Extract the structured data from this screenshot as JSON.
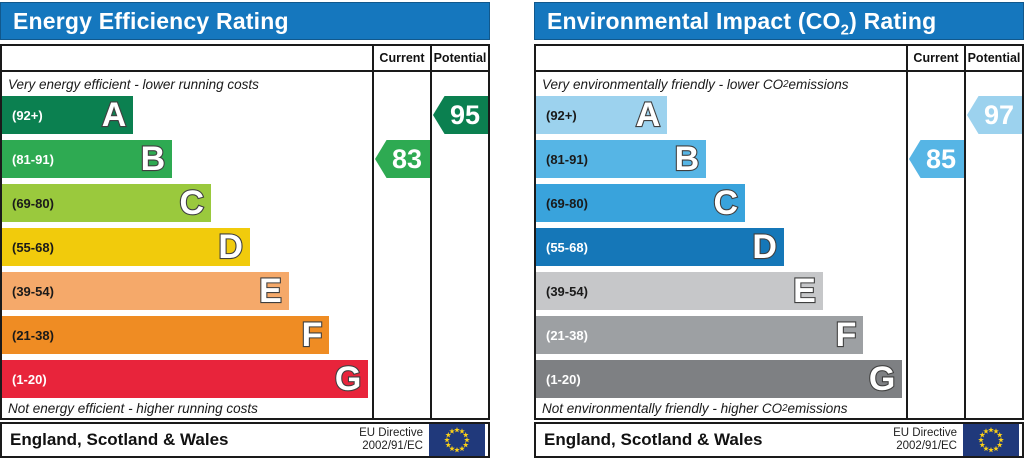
{
  "panels": [
    {
      "id": "energy-efficiency",
      "title": {
        "pre": "Energy Efficiency Rating",
        "sub": "",
        "post": ""
      },
      "columns": {
        "current": "Current",
        "potential": "Potential"
      },
      "top_note": {
        "pre": "Very energy efficient - lower running costs",
        "sub": "",
        "post": ""
      },
      "bottom_note": {
        "pre": "Not energy efficient - higher running costs",
        "sub": "",
        "post": ""
      },
      "bands": [
        {
          "letter": "A",
          "range": "(92+)",
          "color": "#0b8050",
          "label_color": "#ffffff",
          "width_pct": 35.5
        },
        {
          "letter": "B",
          "range": "(81-91)",
          "color": "#2eaa52",
          "label_color": "#ffffff",
          "width_pct": 46
        },
        {
          "letter": "C",
          "range": "(69-80)",
          "color": "#9ac93d",
          "label_color": "#1a1a1a",
          "width_pct": 56.5
        },
        {
          "letter": "D",
          "range": "(55-68)",
          "color": "#f1cb0c",
          "label_color": "#1a1a1a",
          "width_pct": 67
        },
        {
          "letter": "E",
          "range": "(39-54)",
          "color": "#f5a96a",
          "label_color": "#1a1a1a",
          "width_pct": 77.5
        },
        {
          "letter": "F",
          "range": "(21-38)",
          "color": "#ef8c23",
          "label_color": "#1a1a1a",
          "width_pct": 88.5
        },
        {
          "letter": "G",
          "range": "(1-20)",
          "color": "#e8243b",
          "label_color": "#ffffff",
          "width_pct": 99
        }
      ],
      "current": {
        "value": "83",
        "band_index": 1,
        "color": "#2eaa52"
      },
      "potential": {
        "value": "95",
        "band_index": 0,
        "color": "#0b8050"
      },
      "footer": {
        "region": "England, Scotland & Wales",
        "directive_line1": "EU Directive",
        "directive_line2": "2002/91/EC"
      }
    },
    {
      "id": "environmental-impact",
      "title": {
        "pre": "Environmental Impact (CO",
        "sub": "2",
        "post": ") Rating"
      },
      "columns": {
        "current": "Current",
        "potential": "Potential"
      },
      "top_note": {
        "pre": "Very environmentally friendly - lower CO",
        "sub": "2",
        "post": " emissions"
      },
      "bottom_note": {
        "pre": "Not environmentally friendly - higher CO",
        "sub": "2",
        "post": " emissions"
      },
      "bands": [
        {
          "letter": "A",
          "range": "(92+)",
          "color": "#9cd2ee",
          "label_color": "#1a1a1a",
          "width_pct": 35.5
        },
        {
          "letter": "B",
          "range": "(81-91)",
          "color": "#56b5e5",
          "label_color": "#1a1a1a",
          "width_pct": 46
        },
        {
          "letter": "C",
          "range": "(69-80)",
          "color": "#39a3dc",
          "label_color": "#1a1a1a",
          "width_pct": 56.5
        },
        {
          "letter": "D",
          "range": "(55-68)",
          "color": "#1577b8",
          "label_color": "#ffffff",
          "width_pct": 67
        },
        {
          "letter": "E",
          "range": "(39-54)",
          "color": "#c6c7c9",
          "label_color": "#1a1a1a",
          "width_pct": 77.5
        },
        {
          "letter": "F",
          "range": "(21-38)",
          "color": "#9da0a3",
          "label_color": "#ffffff",
          "width_pct": 88.5
        },
        {
          "letter": "G",
          "range": "(1-20)",
          "color": "#7e8083",
          "label_color": "#ffffff",
          "width_pct": 99
        }
      ],
      "current": {
        "value": "85",
        "band_index": 1,
        "color": "#56b5e5"
      },
      "potential": {
        "value": "97",
        "band_index": 0,
        "color": "#9cd2ee"
      },
      "footer": {
        "region": "England, Scotland & Wales",
        "directive_line1": "EU Directive",
        "directive_line2": "2002/91/EC"
      }
    }
  ],
  "eu_flag": {
    "background": "#20397b",
    "star_color": "#fcd116"
  },
  "chart_data": [
    {
      "type": "bar",
      "title": "Energy Efficiency Rating",
      "categories": [
        "A",
        "B",
        "C",
        "D",
        "E",
        "F",
        "G"
      ],
      "ranges": [
        "92+",
        "81-91",
        "69-80",
        "55-68",
        "39-54",
        "21-38",
        "1-20"
      ],
      "values": [
        35.5,
        46,
        56.5,
        67,
        77.5,
        88.5,
        99
      ],
      "values_note": "relative band lengths as % of chart column width",
      "band_colors": [
        "#0b8050",
        "#2eaa52",
        "#9ac93d",
        "#f1cb0c",
        "#f5a96a",
        "#ef8c23",
        "#e8243b"
      ],
      "current": 83,
      "current_band": "B",
      "potential": 95,
      "potential_band": "A",
      "columns": [
        "Current",
        "Potential"
      ],
      "top_annotation": "Very energy efficient - lower running costs",
      "bottom_annotation": "Not energy efficient - higher running costs",
      "footer": "England, Scotland & Wales",
      "directive": "EU Directive 2002/91/EC"
    },
    {
      "type": "bar",
      "title": "Environmental Impact (CO2) Rating",
      "categories": [
        "A",
        "B",
        "C",
        "D",
        "E",
        "F",
        "G"
      ],
      "ranges": [
        "92+",
        "81-91",
        "69-80",
        "55-68",
        "39-54",
        "21-38",
        "1-20"
      ],
      "values": [
        35.5,
        46,
        56.5,
        67,
        77.5,
        88.5,
        99
      ],
      "values_note": "relative band lengths as % of chart column width",
      "band_colors": [
        "#9cd2ee",
        "#56b5e5",
        "#39a3dc",
        "#1577b8",
        "#c6c7c9",
        "#9da0a3",
        "#7e8083"
      ],
      "current": 85,
      "current_band": "B",
      "potential": 97,
      "potential_band": "A",
      "columns": [
        "Current",
        "Potential"
      ],
      "top_annotation": "Very environmentally friendly - lower CO2 emissions",
      "bottom_annotation": "Not environmentally friendly - higher CO2 emissions",
      "footer": "England, Scotland & Wales",
      "directive": "EU Directive 2002/91/EC"
    }
  ]
}
